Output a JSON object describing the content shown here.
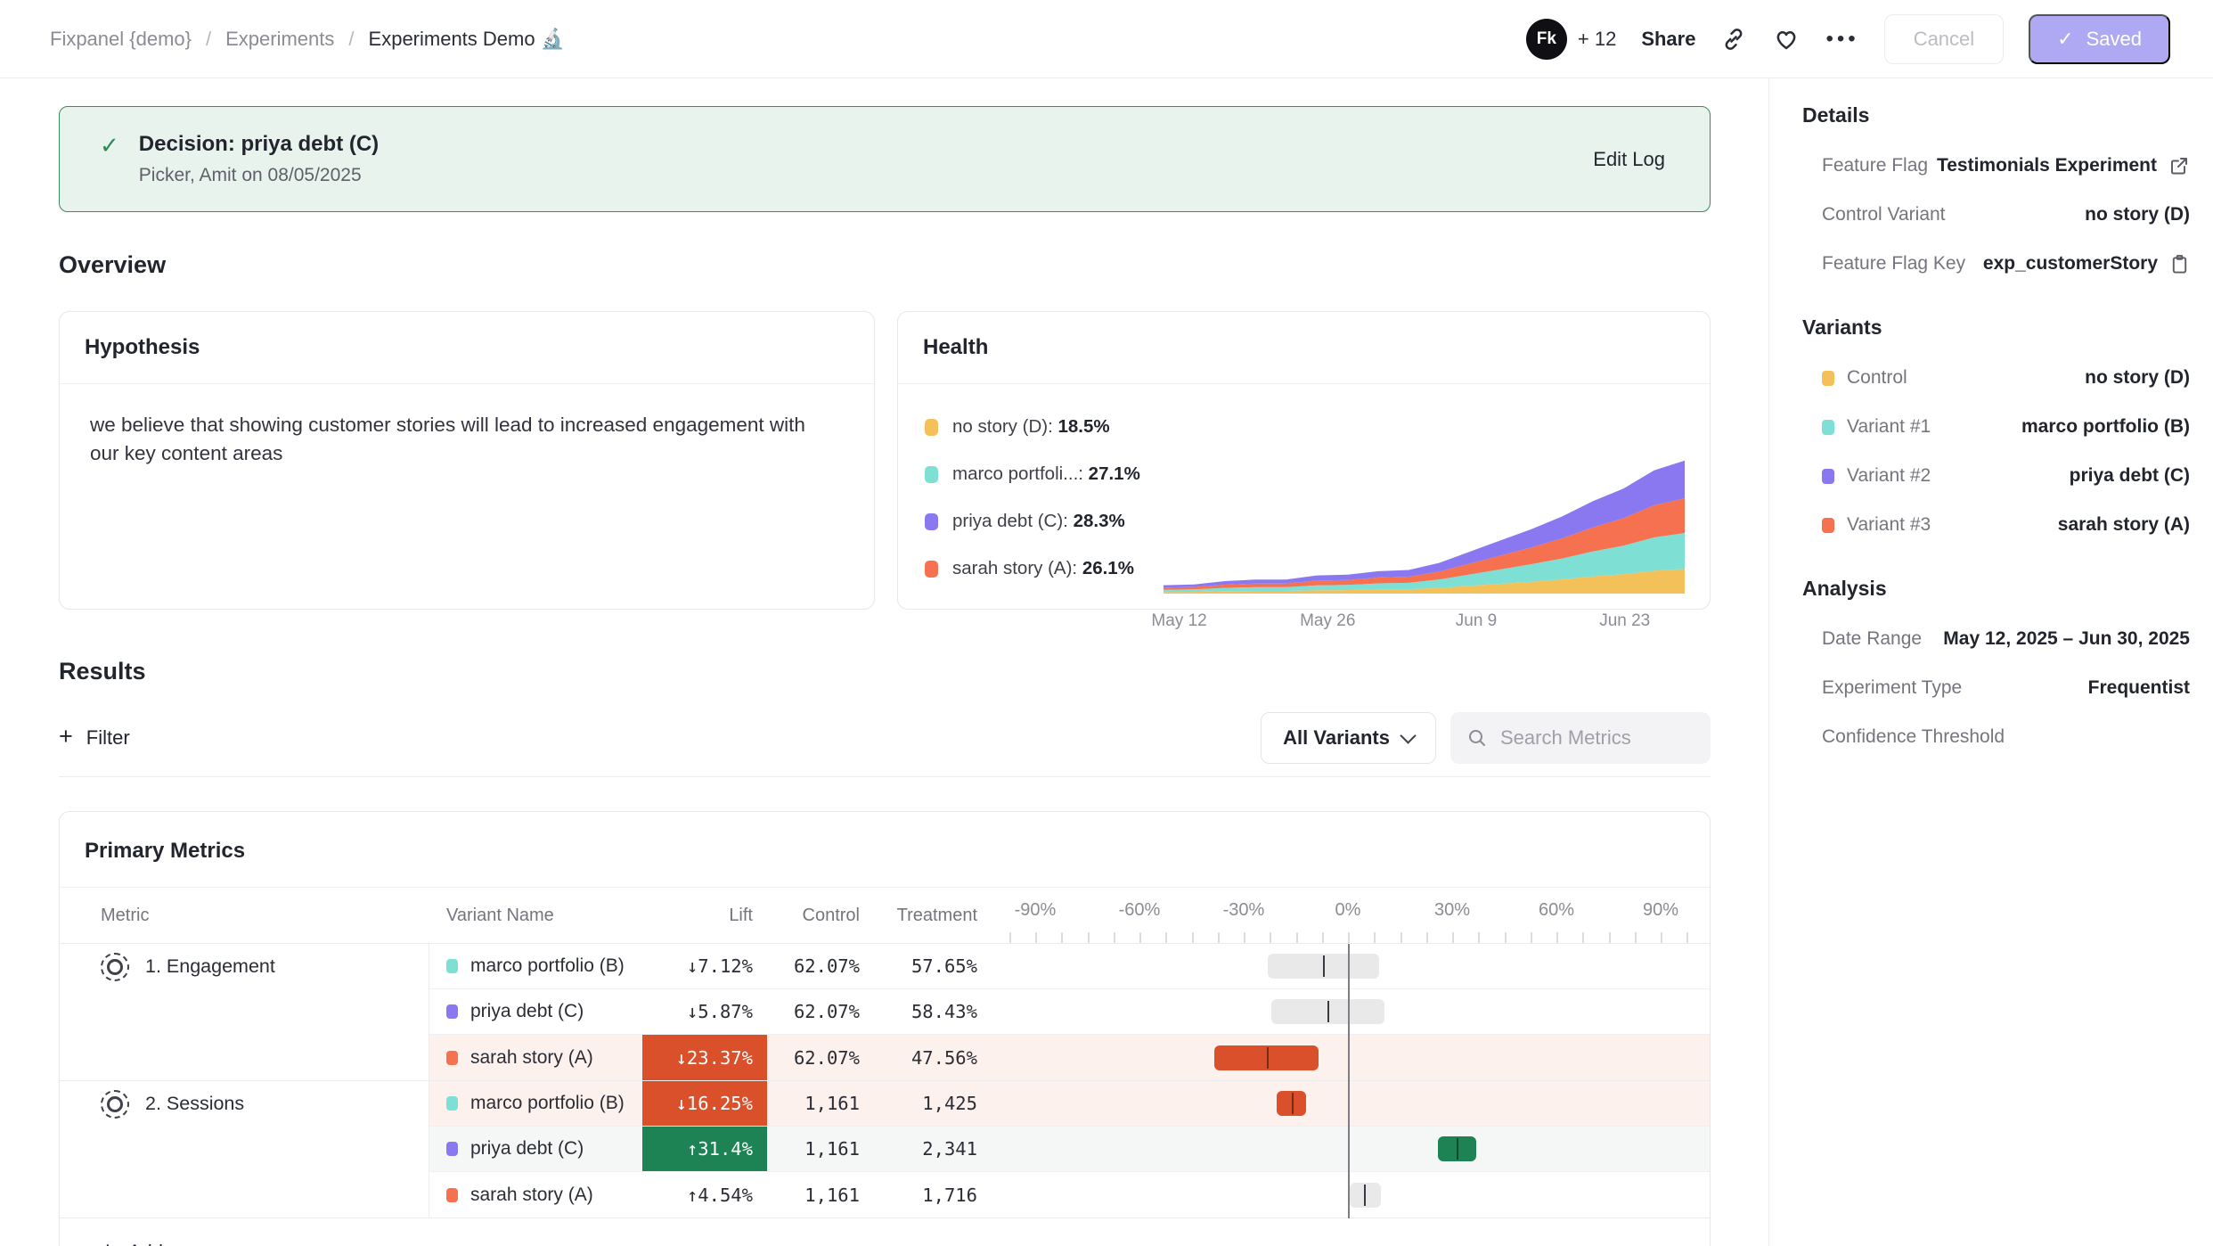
{
  "header": {
    "breadcrumb": [
      "Fixpanel {demo}",
      "Experiments",
      "Experiments Demo 🔬"
    ],
    "avatar_text": "Fk",
    "collaborators": "+ 12",
    "share_label": "Share",
    "more_label": "•••",
    "cancel_label": "Cancel",
    "saved_check": "✓",
    "saved_label": "Saved"
  },
  "decision": {
    "check": "✓",
    "title": "Decision: priya debt (C)",
    "meta": "Picker, Amit on 08/05/2025",
    "action": "Edit Log"
  },
  "overview_heading": "Overview",
  "hypothesis": {
    "title": "Hypothesis",
    "body": "we believe that showing customer stories will lead to increased engagement with our key content areas"
  },
  "health": {
    "title": "Health",
    "legend": [
      {
        "name": "no story (D)",
        "value": "18.5%",
        "color": "#F3C05A"
      },
      {
        "name": "marco portfoli...",
        "value": "27.1%",
        "color": "#7EE0D4"
      },
      {
        "name": "priya debt (C)",
        "value": "28.3%",
        "color": "#8A78F0"
      },
      {
        "name": "sarah story (A)",
        "value": "26.1%",
        "color": "#F5714F"
      }
    ]
  },
  "chart_data": {
    "type": "area",
    "title": "Health",
    "stacked": true,
    "legend_position": "left",
    "x_labels": [
      "May 12",
      "May 26",
      "Jun 9",
      "Jun 23"
    ],
    "x_label_positions_pct": [
      3,
      31.5,
      60,
      88.5
    ],
    "ylim": [
      0,
      100
    ],
    "series": [
      {
        "name": "no story (D)",
        "color": "#F3C05A",
        "values": [
          1.1,
          1.2,
          1.7,
          1.9,
          1.9,
          2.4,
          2.5,
          3.0,
          3.1,
          4.1,
          5.6,
          7.0,
          8.5,
          10.2,
          12.2,
          13.9,
          16.3,
          17.6
        ]
      },
      {
        "name": "marco portfolio (B)",
        "color": "#7EE0D4",
        "values": [
          1.6,
          1.8,
          2.4,
          2.7,
          2.7,
          3.5,
          3.7,
          4.3,
          4.6,
          6.0,
          8.1,
          10.3,
          12.5,
          14.9,
          17.9,
          20.3,
          23.8,
          25.7
        ]
      },
      {
        "name": "sarah story (A)",
        "color": "#F5714F",
        "values": [
          1.6,
          1.7,
          2.3,
          2.6,
          2.6,
          3.4,
          3.5,
          4.2,
          4.4,
          5.7,
          7.8,
          9.9,
          12.0,
          14.4,
          17.2,
          19.6,
          23.0,
          24.8
        ]
      },
      {
        "name": "priya debt (C)",
        "color": "#8A78F0",
        "values": [
          1.7,
          1.8,
          2.5,
          2.8,
          2.8,
          3.7,
          3.8,
          4.5,
          4.8,
          6.2,
          8.5,
          10.8,
          13.0,
          15.6,
          18.7,
          21.2,
          24.9,
          26.9
        ]
      }
    ]
  },
  "results": {
    "heading": "Results",
    "plus": "+",
    "filter_label": "Filter",
    "variants_filter": "All Variants",
    "search_placeholder": "Search Metrics"
  },
  "primary_metrics": {
    "title": "Primary Metrics",
    "columns": {
      "metric": "Metric",
      "variant": "Variant Name",
      "lift": "Lift",
      "control": "Control",
      "treatment": "Treatment"
    },
    "axis": {
      "labels": [
        "-90%",
        "-60%",
        "-30%",
        "0%",
        "30%",
        "60%",
        "90%"
      ],
      "values": [
        -90,
        -60,
        -30,
        0,
        30,
        60,
        90
      ],
      "minor_tick_step_pct": 7.5
    },
    "groups": [
      {
        "metric": "1. Engagement",
        "rows": [
          {
            "variant": "marco portfolio (B)",
            "color": "#7EE0D4",
            "lift": "↓7.12%",
            "lift_kind": "plain",
            "control": "62.07%",
            "treatment": "57.65%",
            "row_tint": "none",
            "ci": {
              "low": -23,
              "high": 9,
              "point": -7.12
            }
          },
          {
            "variant": "priya debt (C)",
            "color": "#8A78F0",
            "lift": "↓5.87%",
            "lift_kind": "plain",
            "control": "62.07%",
            "treatment": "58.43%",
            "row_tint": "none",
            "ci": {
              "low": -22,
              "high": 10.5,
              "point": -5.87
            }
          },
          {
            "variant": "sarah story (A)",
            "color": "#F5714F",
            "lift": "↓23.37%",
            "lift_kind": "negative",
            "control": "62.07%",
            "treatment": "47.56%",
            "row_tint": "negative",
            "ci": {
              "low": -38.5,
              "high": -8.5,
              "point": -23.37
            }
          }
        ]
      },
      {
        "metric": "2. Sessions",
        "rows": [
          {
            "variant": "marco portfolio (B)",
            "color": "#7EE0D4",
            "lift": "↓16.25%",
            "lift_kind": "negative",
            "control": "1,161",
            "treatment": "1,425",
            "row_tint": "negative",
            "ci": {
              "low": -20.5,
              "high": -12,
              "point": -16.25
            }
          },
          {
            "variant": "priya debt (C)",
            "color": "#8A78F0",
            "lift": "↑31.4%",
            "lift_kind": "positive",
            "control": "1,161",
            "treatment": "2,341",
            "row_tint": "neutral",
            "ci": {
              "low": 26,
              "high": 37,
              "point": 31.4
            }
          },
          {
            "variant": "sarah story (A)",
            "color": "#F5714F",
            "lift": "↑4.54%",
            "lift_kind": "plain",
            "control": "1,161",
            "treatment": "1,716",
            "row_tint": "none",
            "ci": {
              "low": 0.5,
              "high": 9.5,
              "point": 4.54
            }
          }
        ]
      }
    ],
    "add_label": "Add",
    "status_colors": {
      "negative": "#D9502B",
      "positive": "#1E8354",
      "row_tint_negative": "#FDF1ED",
      "row_tint_neutral": "#F5F7F6"
    }
  },
  "sidebar": {
    "details": {
      "heading": "Details",
      "rows": [
        {
          "label": "Feature Flag",
          "value": "Testimonials Experiment",
          "icon": "external-link"
        },
        {
          "label": "Control Variant",
          "value": "no story (D)"
        },
        {
          "label": "Feature Flag Key",
          "value": "exp_customerStory",
          "icon": "clipboard"
        }
      ]
    },
    "variants": {
      "heading": "Variants",
      "rows": [
        {
          "label": "Control",
          "color": "#F3C05A",
          "value": "no story (D)"
        },
        {
          "label": "Variant #1",
          "color": "#7EE0D4",
          "value": "marco portfolio (B)"
        },
        {
          "label": "Variant #2",
          "color": "#8A78F0",
          "value": "priya debt (C)"
        },
        {
          "label": "Variant #3",
          "color": "#F5714F",
          "value": "sarah story (A)"
        }
      ]
    },
    "analysis": {
      "heading": "Analysis",
      "rows": [
        {
          "label": "Date Range",
          "value": "May 12, 2025 – Jun 30, 2025"
        },
        {
          "label": "Experiment Type",
          "value": "Frequentist"
        },
        {
          "label": "Confidence Threshold",
          "value": ""
        }
      ]
    }
  }
}
